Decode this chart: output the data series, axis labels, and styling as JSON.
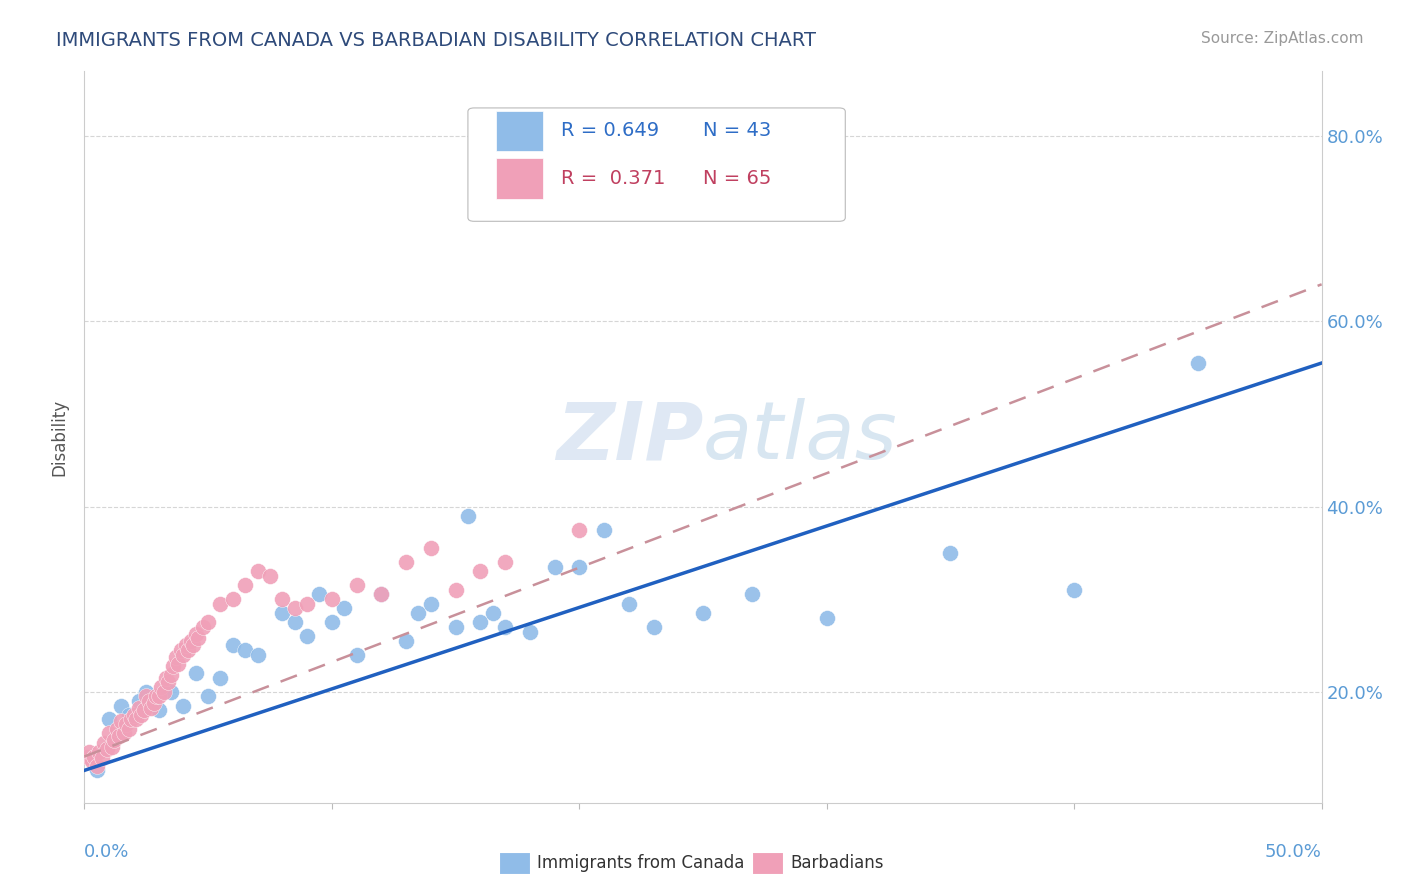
{
  "title": "IMMIGRANTS FROM CANADA VS BARBADIAN DISABILITY CORRELATION CHART",
  "source_text": "Source: ZipAtlas.com",
  "ylabel": "Disability",
  "xlim": [
    0.0,
    0.5
  ],
  "ylim": [
    0.08,
    0.87
  ],
  "ytick_vals": [
    0.2,
    0.4,
    0.6,
    0.8
  ],
  "ytick_labels": [
    "20.0%",
    "40.0%",
    "60.0%",
    "80.0%"
  ],
  "legend_R1": "R = 0.649",
  "legend_N1": "N = 43",
  "legend_R2": "R =  0.371",
  "legend_N2": "N = 65",
  "blue_color": "#90bce8",
  "pink_color": "#f0a0b8",
  "blue_line_color": "#2060c0",
  "pink_line_color": "#c8909a",
  "watermark": "ZIPatlas",
  "blue_scatter_x": [
    0.005,
    0.01,
    0.015,
    0.018,
    0.022,
    0.025,
    0.03,
    0.035,
    0.04,
    0.045,
    0.05,
    0.055,
    0.06,
    0.065,
    0.07,
    0.08,
    0.085,
    0.09,
    0.095,
    0.1,
    0.105,
    0.11,
    0.12,
    0.13,
    0.135,
    0.14,
    0.15,
    0.155,
    0.16,
    0.165,
    0.17,
    0.18,
    0.19,
    0.2,
    0.21,
    0.22,
    0.23,
    0.25,
    0.27,
    0.3,
    0.35,
    0.4,
    0.45
  ],
  "blue_scatter_y": [
    0.115,
    0.17,
    0.185,
    0.175,
    0.19,
    0.2,
    0.18,
    0.2,
    0.185,
    0.22,
    0.195,
    0.215,
    0.25,
    0.245,
    0.24,
    0.285,
    0.275,
    0.26,
    0.305,
    0.275,
    0.29,
    0.24,
    0.305,
    0.255,
    0.285,
    0.295,
    0.27,
    0.39,
    0.275,
    0.285,
    0.27,
    0.265,
    0.335,
    0.335,
    0.375,
    0.295,
    0.27,
    0.285,
    0.305,
    0.28,
    0.35,
    0.31,
    0.555
  ],
  "pink_scatter_x": [
    0.001,
    0.002,
    0.003,
    0.004,
    0.005,
    0.006,
    0.007,
    0.008,
    0.009,
    0.01,
    0.011,
    0.012,
    0.013,
    0.014,
    0.015,
    0.016,
    0.017,
    0.018,
    0.019,
    0.02,
    0.021,
    0.022,
    0.023,
    0.024,
    0.025,
    0.026,
    0.027,
    0.028,
    0.029,
    0.03,
    0.031,
    0.032,
    0.033,
    0.034,
    0.035,
    0.036,
    0.037,
    0.038,
    0.039,
    0.04,
    0.041,
    0.042,
    0.043,
    0.044,
    0.045,
    0.046,
    0.048,
    0.05,
    0.055,
    0.06,
    0.065,
    0.07,
    0.075,
    0.08,
    0.085,
    0.09,
    0.1,
    0.11,
    0.12,
    0.13,
    0.14,
    0.15,
    0.16,
    0.17,
    0.2
  ],
  "pink_scatter_y": [
    0.13,
    0.135,
    0.125,
    0.13,
    0.12,
    0.135,
    0.128,
    0.145,
    0.138,
    0.155,
    0.14,
    0.148,
    0.16,
    0.152,
    0.168,
    0.155,
    0.165,
    0.16,
    0.17,
    0.175,
    0.17,
    0.182,
    0.175,
    0.18,
    0.195,
    0.19,
    0.182,
    0.188,
    0.195,
    0.195,
    0.205,
    0.2,
    0.215,
    0.21,
    0.218,
    0.228,
    0.238,
    0.23,
    0.245,
    0.24,
    0.25,
    0.245,
    0.255,
    0.25,
    0.262,
    0.258,
    0.27,
    0.275,
    0.295,
    0.3,
    0.315,
    0.33,
    0.325,
    0.3,
    0.29,
    0.295,
    0.3,
    0.315,
    0.305,
    0.34,
    0.355,
    0.31,
    0.33,
    0.34,
    0.375
  ],
  "blue_trend_x0": 0.0,
  "blue_trend_x1": 0.5,
  "blue_trend_y0": 0.115,
  "blue_trend_y1": 0.555,
  "pink_trend_x0": 0.0,
  "pink_trend_x1": 0.5,
  "pink_trend_y0": 0.13,
  "pink_trend_y1": 0.64,
  "bottom_legend_labels": [
    "Immigrants from Canada",
    "Barbadians"
  ]
}
